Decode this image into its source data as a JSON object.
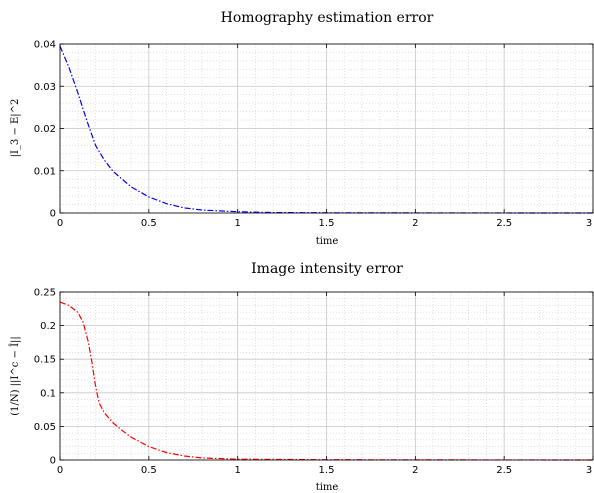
{
  "chart_data": [
    {
      "type": "line",
      "title": "Homography estimation error",
      "xlabel": "time",
      "ylabel": "|I_3 − E|^2",
      "xlim": [
        0,
        3
      ],
      "ylim": [
        0,
        0.04
      ],
      "xticks": [
        0,
        0.5,
        1,
        1.5,
        2,
        2.5,
        3
      ],
      "xtick_labels": [
        "0",
        "0.5",
        "1",
        "1.5",
        "2",
        "2.5",
        "3"
      ],
      "yticks": [
        0,
        0.01,
        0.02,
        0.03,
        0.04
      ],
      "ytick_labels": [
        "0",
        "0.01",
        "0.02",
        "0.03",
        "0.04"
      ],
      "grid": true,
      "series": [
        {
          "color": "#0000ff",
          "dash": "dashdot",
          "x": [
            0,
            0.05,
            0.1,
            0.15,
            0.2,
            0.25,
            0.3,
            0.4,
            0.5,
            0.6,
            0.7,
            0.8,
            1.0,
            1.2,
            1.5,
            2.0,
            2.5,
            3.0
          ],
          "y": [
            0.0395,
            0.0345,
            0.0285,
            0.022,
            0.016,
            0.0125,
            0.0098,
            0.0062,
            0.0038,
            0.0022,
            0.0012,
            0.0007,
            0.0003,
            0.0001,
            5e-05,
            2e-05,
            1e-05,
            0.0
          ]
        }
      ]
    },
    {
      "type": "line",
      "title": "Image intensity error",
      "xlabel": "time",
      "ylabel": "(1/N) ||I^c − Î||",
      "xlim": [
        0,
        3
      ],
      "ylim": [
        0,
        0.25
      ],
      "xticks": [
        0,
        0.5,
        1,
        1.5,
        2,
        2.5,
        3
      ],
      "xtick_labels": [
        "0",
        "0.5",
        "1",
        "1.5",
        "2",
        "2.5",
        "3"
      ],
      "yticks": [
        0,
        0.05,
        0.1,
        0.15,
        0.2,
        0.25
      ],
      "ytick_labels": [
        "0",
        "0.05",
        "0.1",
        "0.15",
        "0.2",
        "0.25"
      ],
      "grid": true,
      "series": [
        {
          "color": "#ff0000",
          "dash": "dashdot",
          "x": [
            0,
            0.05,
            0.1,
            0.13,
            0.16,
            0.18,
            0.2,
            0.22,
            0.25,
            0.3,
            0.35,
            0.4,
            0.5,
            0.6,
            0.7,
            0.8,
            1.0,
            1.5,
            2.0,
            3.0
          ],
          "y": [
            0.235,
            0.23,
            0.22,
            0.205,
            0.175,
            0.145,
            0.11,
            0.085,
            0.07,
            0.055,
            0.044,
            0.034,
            0.02,
            0.011,
            0.006,
            0.003,
            0.0012,
            0.0004,
            0.0002,
            0.0
          ]
        }
      ]
    }
  ]
}
